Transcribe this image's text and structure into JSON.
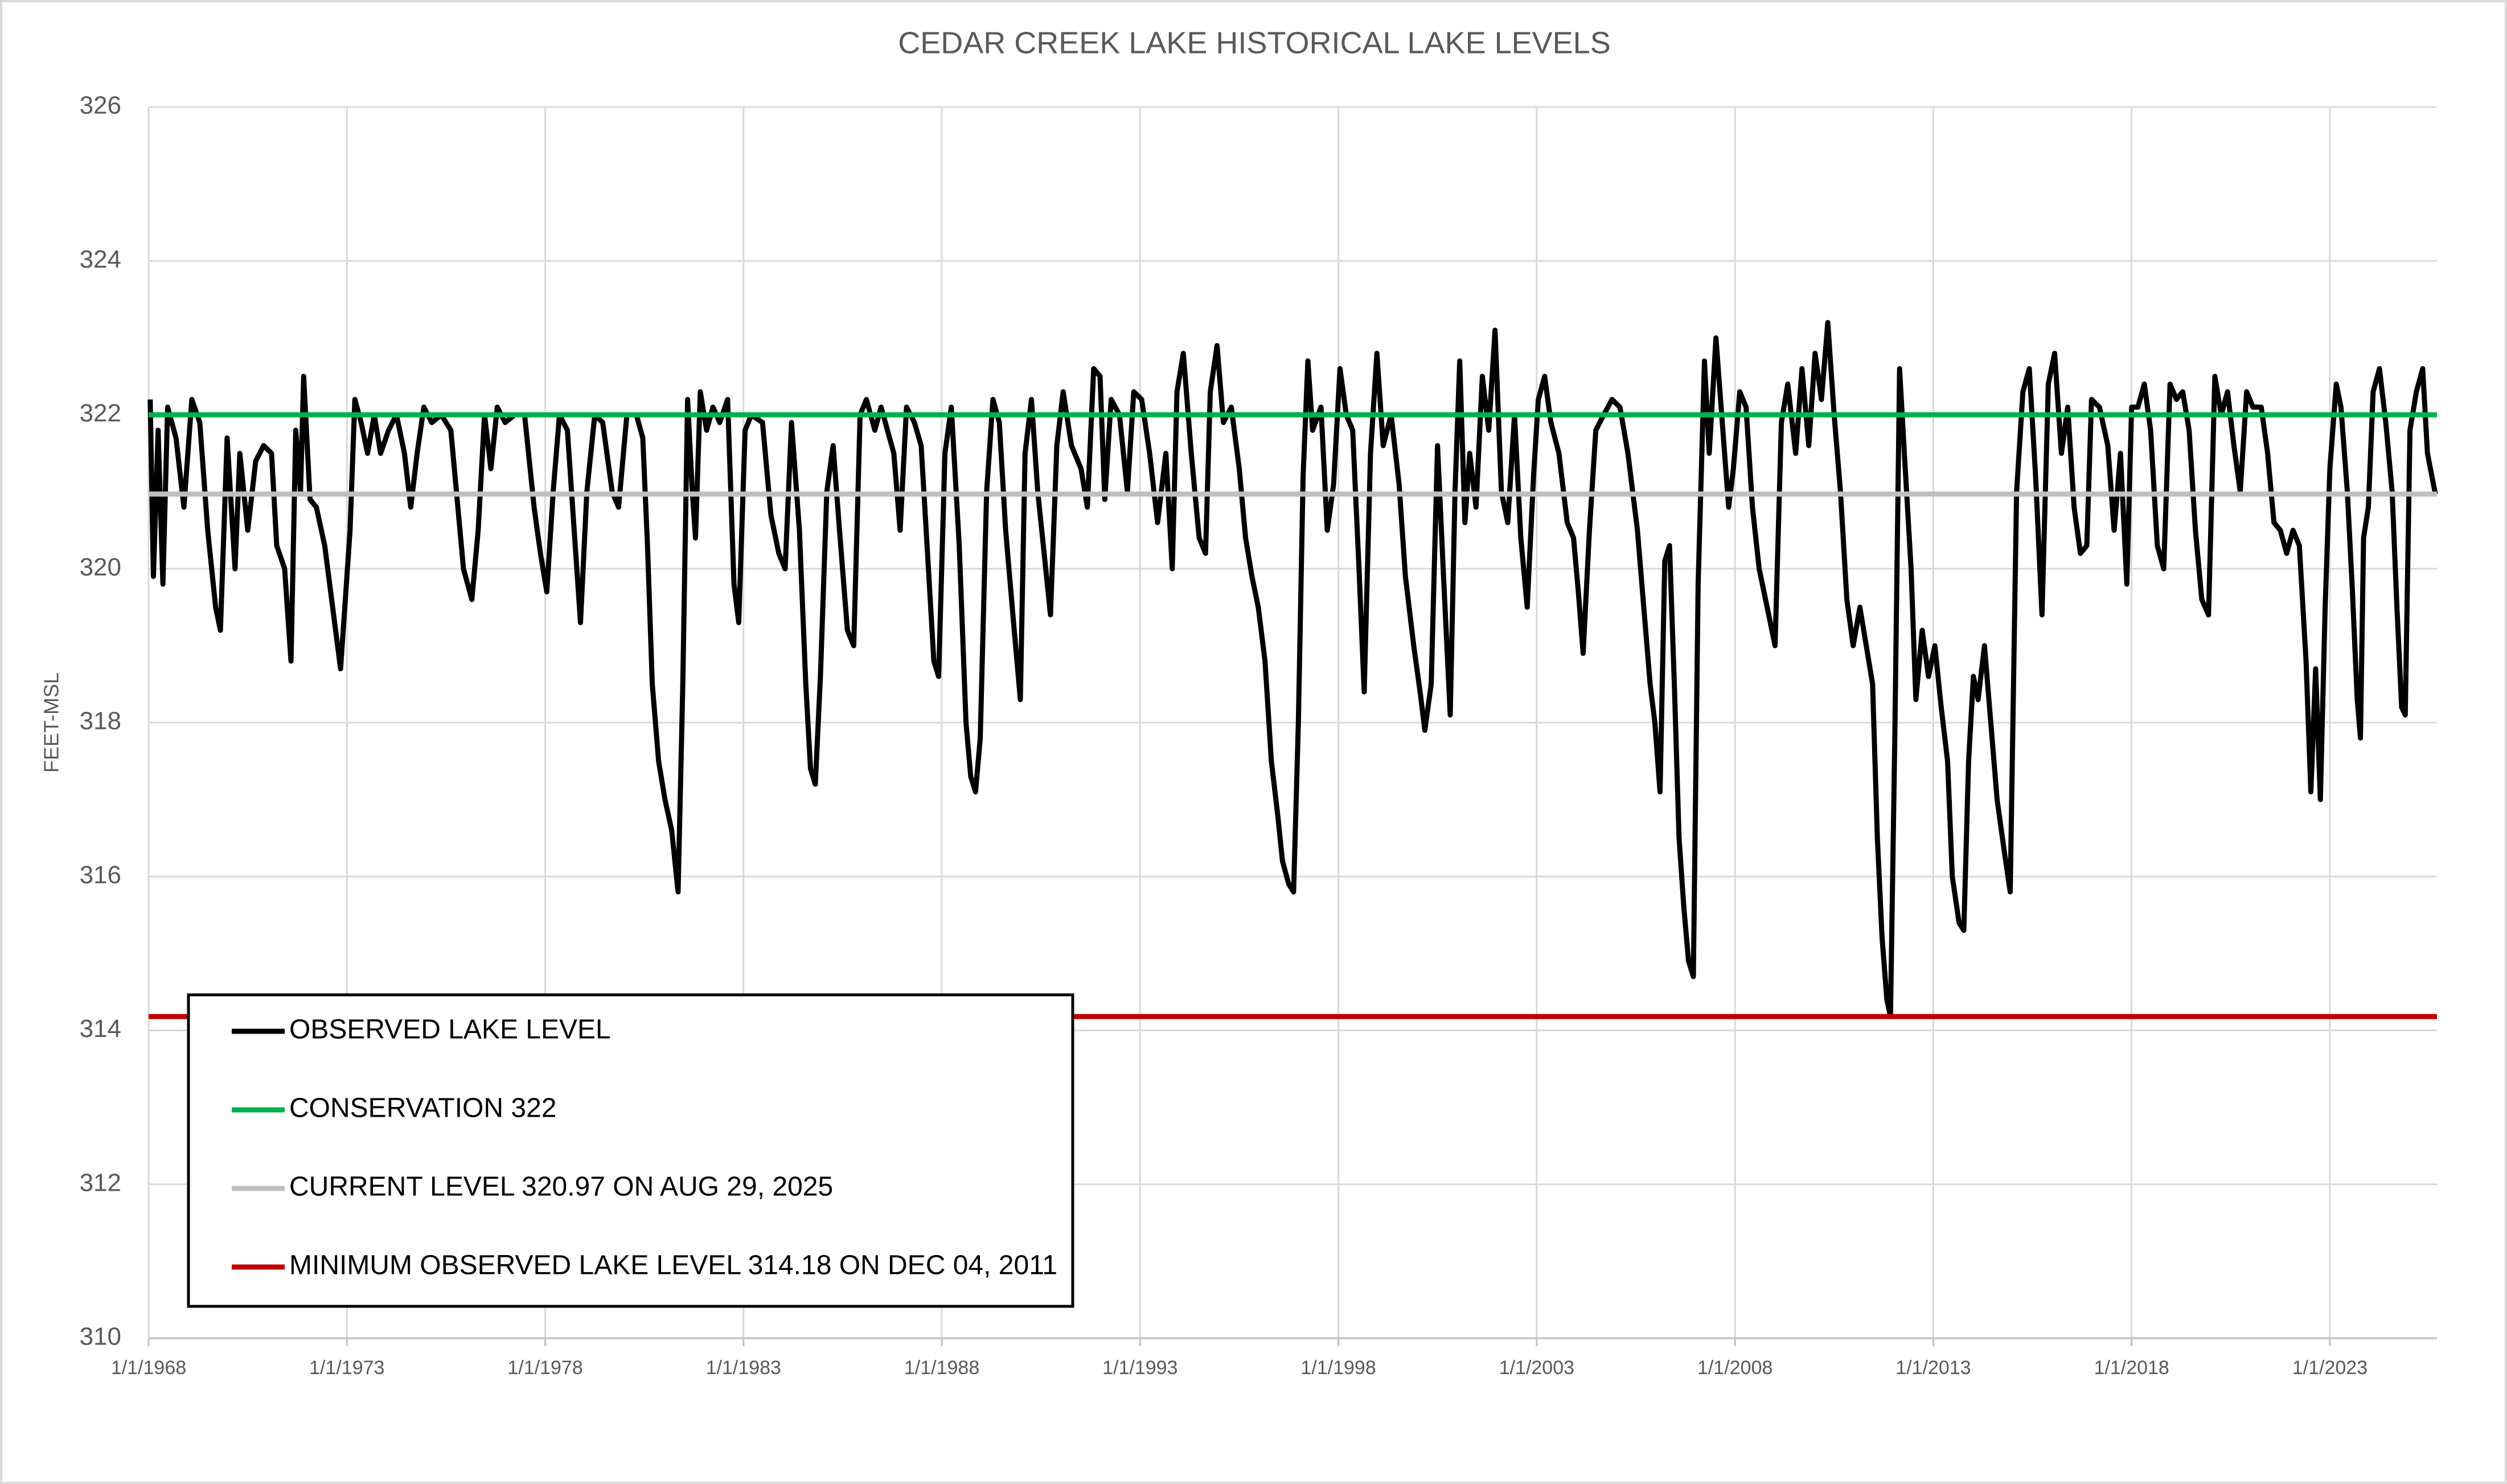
{
  "chart_data": {
    "type": "line",
    "title": "CEDAR CREEK LAKE HISTORICAL LAKE LEVELS",
    "y_label": "FEET-MSL",
    "ylim": [
      310,
      326
    ],
    "yticks": [
      310,
      312,
      314,
      316,
      318,
      320,
      322,
      324,
      326
    ],
    "xlim": [
      1968,
      2025.7
    ],
    "xticks": [
      {
        "value": 1968,
        "label": "1/1/1968"
      },
      {
        "value": 1973,
        "label": "1/1/1973"
      },
      {
        "value": 1978,
        "label": "1/1/1978"
      },
      {
        "value": 1983,
        "label": "1/1/1983"
      },
      {
        "value": 1988,
        "label": "1/1/1988"
      },
      {
        "value": 1993,
        "label": "1/1/1993"
      },
      {
        "value": 1998,
        "label": "1/1/1998"
      },
      {
        "value": 2003,
        "label": "1/1/2003"
      },
      {
        "value": 2008,
        "label": "1/1/2008"
      },
      {
        "value": 2013,
        "label": "1/1/2013"
      },
      {
        "value": 2018,
        "label": "1/1/2018"
      },
      {
        "value": 2023,
        "label": "1/1/2023"
      }
    ],
    "grid": true,
    "legend_position": "lower left",
    "series": [
      {
        "name": "OBSERVED LAKE LEVEL",
        "color": "#000000",
        "x": [
          1968.04,
          1968.12,
          1968.24,
          1968.36,
          1968.48,
          1968.69,
          1968.89,
          1969.09,
          1969.29,
          1969.49,
          1969.69,
          1969.81,
          1969.98,
          1970.18,
          1970.3,
          1970.5,
          1970.7,
          1970.9,
          1971.1,
          1971.23,
          1971.43,
          1971.59,
          1971.71,
          1971.83,
          1971.91,
          1972.07,
          1972.23,
          1972.44,
          1972.64,
          1972.84,
          1972.96,
          1973.08,
          1973.2,
          1973.36,
          1973.52,
          1973.69,
          1973.85,
          1974.05,
          1974.25,
          1974.45,
          1974.61,
          1974.77,
          1974.94,
          1975.14,
          1975.38,
          1975.62,
          1975.78,
          1975.94,
          1976.15,
          1976.31,
          1976.47,
          1976.63,
          1976.79,
          1976.99,
          1977.23,
          1977.48,
          1977.72,
          1977.88,
          1978.04,
          1978.2,
          1978.36,
          1978.56,
          1978.73,
          1978.89,
          1979.05,
          1979.25,
          1979.45,
          1979.69,
          1979.85,
          1980.06,
          1980.3,
          1980.46,
          1980.58,
          1980.7,
          1980.86,
          1981.02,
          1981.19,
          1981.35,
          1981.47,
          1981.59,
          1981.71,
          1981.79,
          1981.91,
          1982.07,
          1982.23,
          1982.4,
          1982.6,
          1982.76,
          1982.88,
          1983.04,
          1983.2,
          1983.48,
          1983.69,
          1983.89,
          1984.05,
          1984.21,
          1984.41,
          1984.57,
          1984.69,
          1984.81,
          1984.94,
          1985.1,
          1985.26,
          1985.42,
          1985.62,
          1985.78,
          1985.94,
          1986.1,
          1986.31,
          1986.47,
          1986.63,
          1986.79,
          1986.95,
          1987.11,
          1987.31,
          1987.48,
          1987.64,
          1987.8,
          1987.92,
          1988.08,
          1988.24,
          1988.44,
          1988.61,
          1988.73,
          1988.85,
          1988.97,
          1989.13,
          1989.29,
          1989.45,
          1989.61,
          1989.81,
          1989.98,
          1990.1,
          1990.26,
          1990.42,
          1990.58,
          1990.74,
          1990.9,
          1991.06,
          1991.27,
          1991.51,
          1991.67,
          1991.83,
          1991.99,
          1992.11,
          1992.27,
          1992.48,
          1992.68,
          1992.84,
          1993.04,
          1993.24,
          1993.44,
          1993.65,
          1993.81,
          1993.93,
          1994.09,
          1994.29,
          1994.49,
          1994.65,
          1994.77,
          1994.94,
          1995.1,
          1995.3,
          1995.5,
          1995.66,
          1995.82,
          1995.98,
          1996.15,
          1996.31,
          1996.47,
          1996.59,
          1996.75,
          1996.87,
          1996.99,
          1997.11,
          1997.23,
          1997.35,
          1997.56,
          1997.72,
          1997.88,
          1998.04,
          1998.2,
          1998.36,
          1998.52,
          1998.65,
          1998.81,
          1998.97,
          1999.13,
          1999.33,
          1999.53,
          1999.69,
          1999.9,
          2000.06,
          2000.18,
          2000.34,
          2000.5,
          2000.66,
          2000.82,
          2000.94,
          2001.06,
          2001.19,
          2001.31,
          2001.47,
          2001.63,
          2001.79,
          2001.95,
          2002.11,
          2002.27,
          2002.44,
          2002.6,
          2002.76,
          2002.92,
          2003.04,
          2003.2,
          2003.36,
          2003.56,
          2003.77,
          2003.93,
          2004.05,
          2004.17,
          2004.33,
          2004.49,
          2004.69,
          2004.9,
          2005.1,
          2005.3,
          2005.54,
          2005.7,
          2005.86,
          2005.98,
          2006.11,
          2006.23,
          2006.35,
          2006.47,
          2006.59,
          2006.71,
          2006.83,
          2006.95,
          2007.07,
          2007.23,
          2007.35,
          2007.52,
          2007.68,
          2007.84,
          2007.96,
          2008.12,
          2008.28,
          2008.44,
          2008.61,
          2008.81,
          2009.01,
          2009.17,
          2009.33,
          2009.53,
          2009.69,
          2009.86,
          2010.02,
          2010.18,
          2010.34,
          2010.5,
          2010.66,
          2010.82,
          2010.98,
          2011.15,
          2011.31,
          2011.47,
          2011.59,
          2011.71,
          2011.83,
          2011.92,
          2012.03,
          2012.15,
          2012.27,
          2012.44,
          2012.56,
          2012.72,
          2012.88,
          2013.04,
          2013.2,
          2013.36,
          2013.48,
          2013.65,
          2013.77,
          2013.89,
          2014.01,
          2014.13,
          2014.29,
          2014.45,
          2014.61,
          2014.77,
          2014.94,
          2015.1,
          2015.26,
          2015.42,
          2015.58,
          2015.74,
          2015.9,
          2016.06,
          2016.23,
          2016.39,
          2016.55,
          2016.71,
          2016.87,
          2016.99,
          2017.19,
          2017.4,
          2017.56,
          2017.72,
          2017.88,
          2018.0,
          2018.16,
          2018.32,
          2018.48,
          2018.65,
          2018.81,
          2018.97,
          2019.13,
          2019.29,
          2019.45,
          2019.61,
          2019.77,
          2019.94,
          2020.1,
          2020.26,
          2020.42,
          2020.58,
          2020.74,
          2020.9,
          2021.06,
          2021.27,
          2021.43,
          2021.59,
          2021.75,
          2021.91,
          2022.07,
          2022.23,
          2022.4,
          2022.52,
          2022.64,
          2022.76,
          2022.88,
          2023.0,
          2023.16,
          2023.28,
          2023.44,
          2023.56,
          2023.69,
          2023.77,
          2023.85,
          2023.97,
          2024.09,
          2024.25,
          2024.41,
          2024.57,
          2024.69,
          2024.81,
          2024.9,
          2025.02,
          2025.18,
          2025.34,
          2025.46,
          2025.66
        ],
        "values": [
          322.2,
          319.9,
          321.8,
          319.8,
          322.1,
          321.7,
          320.8,
          322.2,
          321.9,
          320.5,
          319.5,
          319.2,
          321.7,
          320.0,
          321.5,
          320.5,
          321.4,
          321.6,
          321.5,
          320.3,
          320.0,
          318.8,
          321.8,
          321.0,
          322.5,
          320.9,
          320.8,
          320.3,
          319.5,
          318.7,
          319.6,
          320.5,
          322.2,
          321.9,
          321.5,
          322.0,
          321.5,
          321.8,
          322.0,
          321.5,
          320.8,
          321.5,
          322.1,
          321.9,
          322.0,
          321.8,
          320.9,
          320.0,
          319.6,
          320.5,
          322.0,
          321.3,
          322.1,
          321.9,
          322.0,
          322.0,
          320.8,
          320.2,
          319.7,
          321.0,
          322.0,
          321.8,
          320.5,
          319.3,
          321.0,
          322.0,
          321.9,
          321.0,
          320.8,
          322.0,
          322.0,
          321.7,
          320.3,
          318.5,
          317.5,
          317.0,
          316.6,
          315.8,
          318.5,
          322.2,
          321.0,
          320.4,
          322.3,
          321.8,
          322.1,
          321.9,
          322.2,
          319.8,
          319.3,
          321.8,
          322.0,
          321.9,
          320.7,
          320.2,
          320.0,
          321.9,
          320.5,
          318.5,
          317.4,
          317.2,
          318.6,
          321.0,
          321.6,
          320.5,
          319.2,
          319.0,
          322.0,
          322.2,
          321.8,
          322.1,
          321.8,
          321.5,
          320.5,
          322.1,
          321.9,
          321.6,
          320.2,
          318.8,
          318.6,
          321.5,
          322.1,
          320.3,
          318.0,
          317.3,
          317.1,
          317.8,
          321.0,
          322.2,
          321.9,
          320.5,
          319.3,
          318.3,
          321.5,
          322.2,
          321.0,
          320.2,
          319.4,
          321.6,
          322.3,
          321.6,
          321.3,
          320.8,
          322.6,
          322.5,
          320.9,
          322.2,
          322.0,
          321.0,
          322.3,
          322.2,
          321.5,
          320.6,
          321.5,
          320.0,
          322.3,
          322.8,
          321.5,
          320.4,
          320.2,
          322.3,
          322.9,
          321.9,
          322.1,
          321.3,
          320.4,
          319.9,
          319.5,
          318.8,
          317.5,
          316.8,
          316.2,
          315.9,
          315.8,
          318.0,
          321.2,
          322.7,
          321.8,
          322.1,
          320.5,
          321.1,
          322.6,
          322.0,
          321.8,
          320.0,
          318.4,
          321.5,
          322.8,
          321.6,
          322.0,
          321.1,
          319.9,
          319.0,
          318.4,
          317.9,
          318.5,
          321.6,
          319.8,
          318.1,
          321.0,
          322.7,
          320.6,
          321.5,
          320.8,
          322.5,
          321.8,
          323.1,
          321.0,
          320.6,
          322.0,
          320.4,
          319.5,
          321.2,
          322.2,
          322.5,
          321.9,
          321.5,
          320.6,
          320.4,
          319.7,
          318.9,
          320.5,
          321.8,
          322.0,
          322.2,
          322.1,
          321.5,
          320.5,
          319.5,
          318.5,
          318.0,
          317.1,
          320.1,
          320.3,
          318.5,
          316.5,
          315.6,
          314.9,
          314.7,
          319.8,
          322.7,
          321.5,
          323.0,
          321.9,
          320.8,
          321.3,
          322.3,
          322.1,
          320.8,
          320.0,
          319.5,
          319.0,
          321.9,
          322.4,
          321.5,
          322.6,
          321.6,
          322.8,
          322.2,
          323.2,
          322.0,
          321.0,
          319.6,
          319.0,
          319.5,
          319.0,
          318.5,
          316.5,
          315.2,
          314.4,
          314.18,
          317.8,
          322.6,
          321.5,
          320.0,
          318.3,
          319.2,
          318.6,
          319.0,
          318.2,
          317.5,
          316.0,
          315.4,
          315.3,
          317.5,
          318.6,
          318.3,
          319.0,
          318.0,
          317.0,
          316.4,
          315.8,
          321.0,
          322.3,
          322.6,
          321.2,
          319.4,
          322.4,
          322.8,
          321.5,
          322.1,
          320.8,
          320.2,
          320.3,
          322.2,
          322.1,
          321.6,
          320.5,
          321.5,
          319.8,
          322.1,
          322.1,
          322.4,
          321.8,
          320.3,
          320.0,
          322.4,
          322.2,
          322.3,
          321.8,
          320.5,
          319.6,
          319.4,
          322.5,
          322.0,
          322.3,
          321.6,
          321.0,
          322.3,
          322.1,
          322.1,
          321.5,
          320.6,
          320.5,
          320.2,
          320.5,
          320.3,
          318.8,
          317.1,
          318.7,
          317.0,
          319.5,
          321.3,
          322.4,
          322.1,
          321.0,
          319.8,
          318.3,
          317.8,
          320.4,
          320.8,
          322.3,
          322.6,
          321.9,
          321.0,
          319.5,
          318.2,
          318.1,
          321.8,
          322.3,
          322.6,
          321.5,
          320.97
        ]
      },
      {
        "name": "CONSERVATION 322",
        "color": "#00b050",
        "value": 322
      },
      {
        "name": "CURRENT LEVEL 320.97 ON AUG 29, 2025",
        "color": "#bfbfbf",
        "value": 320.97
      },
      {
        "name": "MINIMUM OBSERVED LAKE LEVEL 314.18 ON DEC 04, 2011",
        "color": "#c00000",
        "value": 314.18
      }
    ]
  }
}
